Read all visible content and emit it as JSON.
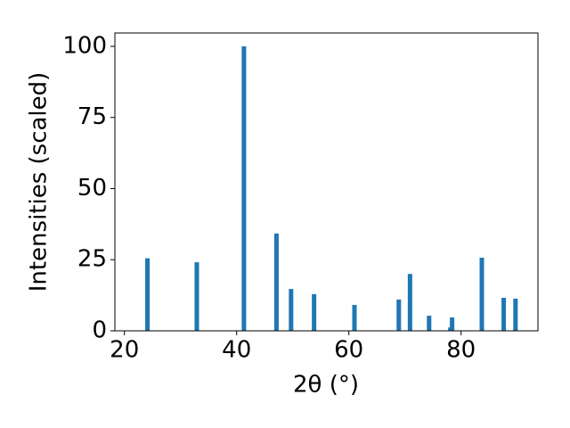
{
  "chart_data": {
    "type": "bar",
    "x": [
      24.1,
      32.9,
      41.3,
      47.1,
      49.7,
      53.8,
      61.0,
      68.9,
      70.9,
      74.3,
      78.1,
      78.4,
      83.7,
      87.6,
      89.7
    ],
    "values": [
      25.5,
      24.1,
      100,
      34.2,
      14.7,
      12.9,
      9.1,
      11,
      20,
      5.3,
      1.2,
      4.7,
      25.7,
      11.6,
      11.3
    ],
    "color": "#1f77b4",
    "xlabel": "2θ (°)",
    "ylabel": "Intensities (scaled)",
    "xlim": [
      18.3,
      93.7
    ],
    "ylim": [
      0,
      104.7
    ],
    "xticks": [
      20,
      40,
      60,
      80
    ],
    "yticks": [
      0,
      25,
      50,
      75,
      100
    ],
    "grid": false
  }
}
